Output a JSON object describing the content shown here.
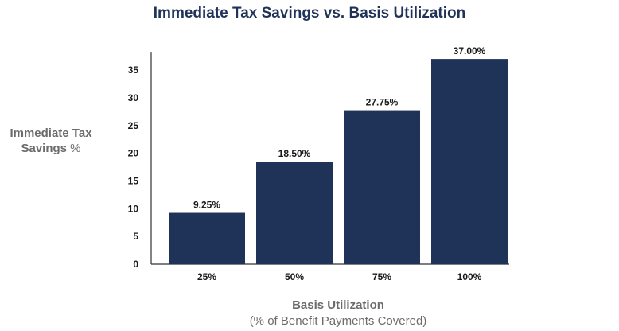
{
  "chart_data": {
    "type": "bar",
    "title": "Immediate Tax Savings vs. Basis Utilization",
    "ylabel_bold": "Immediate Tax Savings",
    "ylabel_unit": "%",
    "xlabel": "Basis Utilization",
    "xlabel_sub": "(% of Benefit Payments Covered)",
    "categories": [
      "25%",
      "50%",
      "75%",
      "100%"
    ],
    "values": [
      9.25,
      18.5,
      27.75,
      37.0
    ],
    "data_labels": [
      "9.25%",
      "18.50%",
      "27.75%",
      "37.00%"
    ],
    "yticks": [
      0,
      5,
      10,
      15,
      20,
      25,
      30,
      35
    ],
    "ylim": [
      0,
      38
    ],
    "grid": false,
    "colors": {
      "bar": "#1f3257",
      "axis": "#333333",
      "title": "#1f3257",
      "label": "#6b6b6b"
    }
  }
}
